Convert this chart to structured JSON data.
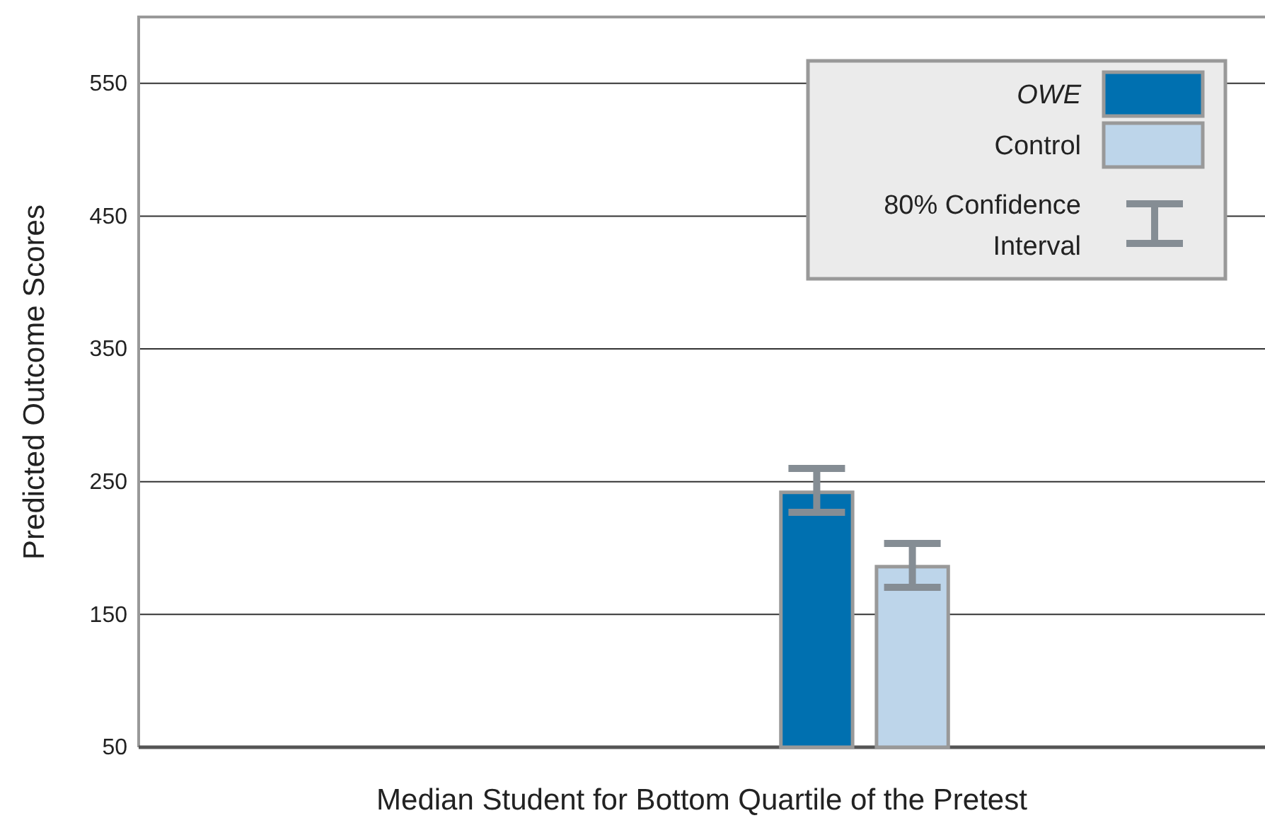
{
  "chart_data": {
    "type": "bar",
    "xlabel": "Median Student for Bottom Quartile of the Pretest",
    "ylabel": "Predicted Outcome Scores",
    "categories": [
      null
    ],
    "series": [
      {
        "name": "OWE",
        "color": "#0070b0",
        "values": [
          242
        ],
        "errors": [
          [
            227,
            260
          ]
        ]
      },
      {
        "name": "Control",
        "color": "#bdd5ea",
        "values": [
          186
        ],
        "errors": [
          [
            170.5,
            203.5
          ]
        ]
      }
    ],
    "ylim": [
      50,
      600
    ],
    "yticks": [
      50,
      150,
      250,
      350,
      450,
      550
    ],
    "grid": "y",
    "legend": "top right",
    "annotations": [
      "80% Confidence Interval"
    ]
  }
}
